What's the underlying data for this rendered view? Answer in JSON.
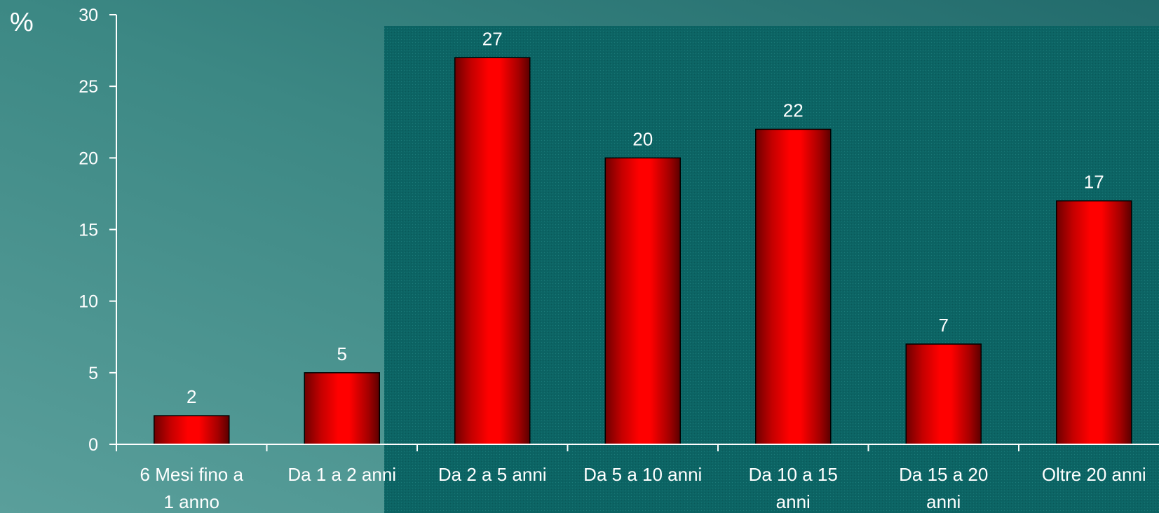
{
  "chart_data": {
    "type": "bar",
    "ylabel": "%",
    "ylim": [
      0,
      30
    ],
    "yticks": [
      0,
      5,
      10,
      15,
      20,
      25,
      30
    ],
    "categories": [
      [
        "6 Mesi fino a",
        "1 anno"
      ],
      [
        "Da 1 a 2 anni"
      ],
      [
        "Da 2 a 5 anni"
      ],
      [
        "Da 5 a 10 anni"
      ],
      [
        "Da 10 a 15",
        "anni"
      ],
      [
        "Da 15 a 20",
        "anni"
      ],
      [
        "Oltre 20 anni"
      ]
    ],
    "values": [
      2,
      5,
      27,
      20,
      22,
      7,
      17
    ],
    "data_labels": [
      "2",
      "5",
      "27",
      "20",
      "22",
      "7",
      "17"
    ],
    "grid": false,
    "legend": "none",
    "colors": {
      "bar_center": "#ff0000",
      "bar_edge": "#6e0000",
      "axis": "#ffffff",
      "text": "#ffffff",
      "background_light": "#5a9f9b",
      "background_dark": "#226b6c",
      "plot_area": "#0c6464"
    }
  }
}
